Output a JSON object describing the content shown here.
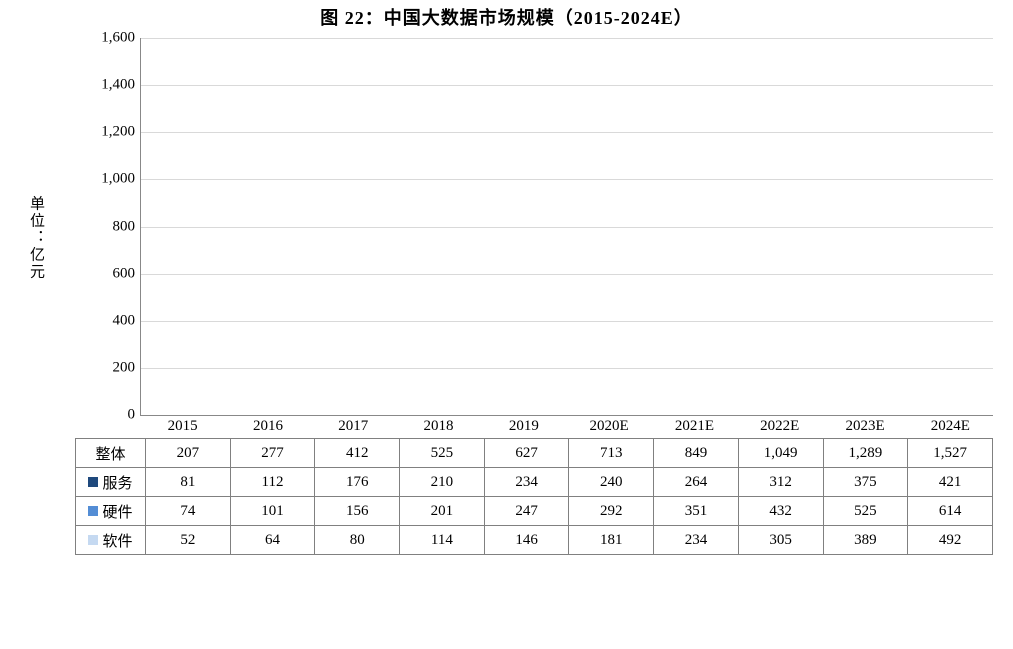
{
  "title": "图 22：中国大数据市场规模（2015-2024E）",
  "chart": {
    "type": "stacked-bar",
    "ylabel": "单位：亿元",
    "background_color": "#ffffff",
    "grid_color": "#d9d9d9",
    "axis_color": "#888888",
    "text_color": "#000000",
    "title_fontsize": 18,
    "tick_fontsize": 15,
    "ylabel_fontsize": 15,
    "table_fontsize": 15,
    "ylim": [
      0,
      1600
    ],
    "ytick_step": 200,
    "yticks": [
      "0",
      "200",
      "400",
      "600",
      "800",
      "1,000",
      "1,200",
      "1,400",
      "1,600"
    ],
    "categories": [
      "2015",
      "2016",
      "2017",
      "2018",
      "2019",
      "2020E",
      "2021E",
      "2022E",
      "2023E",
      "2024E"
    ],
    "series": [
      {
        "key": "软件",
        "label": "软件",
        "color": "#c5d9f1",
        "values": [
          52,
          64,
          80,
          114,
          146,
          181,
          234,
          305,
          389,
          492
        ]
      },
      {
        "key": "硬件",
        "label": "硬件",
        "color": "#538dd5",
        "values": [
          74,
          101,
          156,
          201,
          247,
          292,
          351,
          432,
          525,
          614
        ]
      },
      {
        "key": "服务",
        "label": "服务",
        "color": "#1f497d",
        "values": [
          81,
          112,
          176,
          210,
          234,
          240,
          264,
          312,
          375,
          421
        ]
      }
    ],
    "totals": {
      "label": "整体",
      "swatch": null,
      "values": [
        207,
        277,
        412,
        525,
        627,
        713,
        849,
        1049,
        1289,
        1527
      ],
      "values_fmt": [
        "207",
        "277",
        "412",
        "525",
        "627",
        "713",
        "849",
        "1,049",
        "1,289",
        "1,527"
      ]
    },
    "bar_width": 0.68
  }
}
